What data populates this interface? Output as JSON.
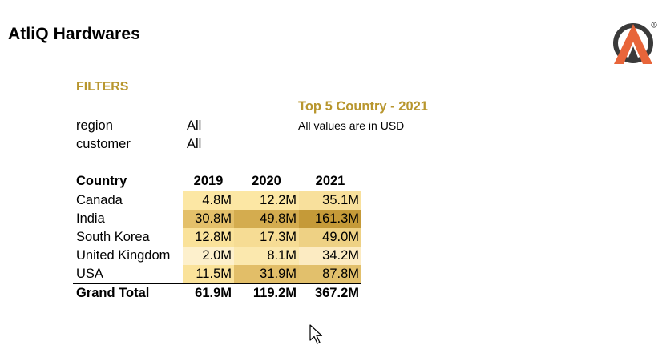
{
  "header": {
    "company_name": "AtliQ Hardwares"
  },
  "filters": {
    "heading": "FILTERS",
    "items": [
      {
        "label": "region",
        "value": "All"
      },
      {
        "label": "customer",
        "value": "All"
      }
    ]
  },
  "report": {
    "title": "Top 5 Country - 2021",
    "subtitle": "All values are in USD"
  },
  "colors": {
    "accent_gold": "#B8962E",
    "logo_dark": "#3A3A3A",
    "logo_orange": "#E8653A"
  },
  "table": {
    "headers": [
      "Country",
      "2019",
      "2020",
      "2021"
    ],
    "rows": [
      {
        "country": "Canada",
        "values": [
          "4.8M",
          "12.2M",
          "35.1M"
        ],
        "colors": [
          "#FCE7A4",
          "#FCE7A4",
          "#F8E09C"
        ]
      },
      {
        "country": "India",
        "values": [
          "30.8M",
          "49.8M",
          "161.3M"
        ],
        "colors": [
          "#E4C06A",
          "#D4AC4F",
          "#C59A38"
        ]
      },
      {
        "country": "South Korea",
        "values": [
          "12.8M",
          "17.3M",
          "49.0M"
        ],
        "colors": [
          "#FAE29A",
          "#F6DC94",
          "#EED184"
        ]
      },
      {
        "country": "United Kingdom",
        "values": [
          "2.0M",
          "8.1M",
          "34.2M"
        ],
        "colors": [
          "#FDF0CC",
          "#FBE8AE",
          "#FCEBC2"
        ]
      },
      {
        "country": "USA",
        "values": [
          "11.5M",
          "31.9M",
          "87.8M"
        ],
        "colors": [
          "#FAE29A",
          "#E2BE68",
          "#E2C06C"
        ]
      }
    ],
    "grand_total": {
      "label": "Grand Total",
      "values": [
        "61.9M",
        "119.2M",
        "367.2M"
      ]
    }
  }
}
